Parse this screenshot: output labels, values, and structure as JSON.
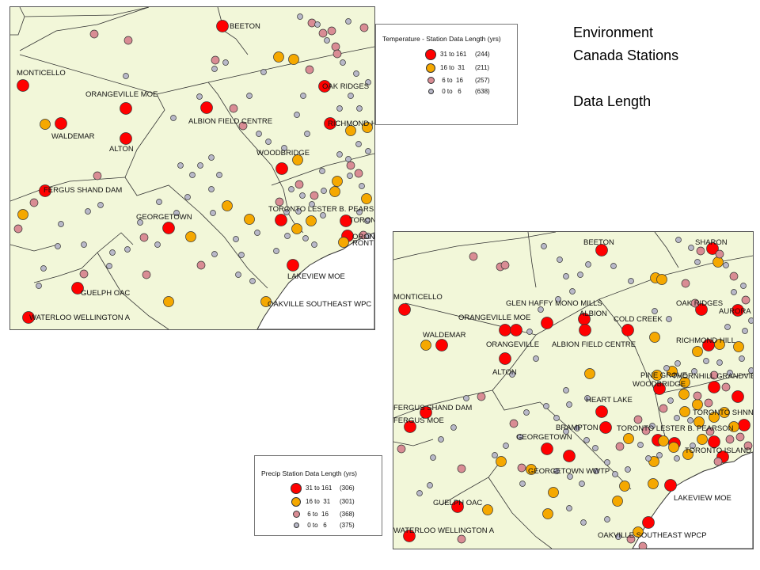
{
  "heading": {
    "line1": "Environment",
    "line2": "Canada Stations",
    "line3": "Data Length"
  },
  "colors": {
    "land": "#f2f7d9",
    "water": "#ffffff",
    "class_31_161": "#ff0000",
    "class_16_31": "#f5a800",
    "class_6_16": "#d98c94",
    "class_0_6": "#b8b8c8"
  },
  "legend_temperature": {
    "title": "Temperature - Station Data Length (yrs)",
    "rows": [
      {
        "range": "31 to 161",
        "count": "(244)"
      },
      {
        "range": "16 to  31",
        "count": "(211)"
      },
      {
        "range": " 6 to  16",
        "count": "(257)"
      },
      {
        "range": " 0 to   6",
        "count": "(638)"
      }
    ]
  },
  "legend_precip": {
    "title": "Precip Station Data Length (yrs)",
    "rows": [
      {
        "range": "31 to 161",
        "count": "(306)"
      },
      {
        "range": "16 to  31",
        "count": "(301)"
      },
      {
        "range": " 6 to  16",
        "count": "(368)"
      },
      {
        "range": " 0 to   6",
        "count": "(375)"
      }
    ]
  },
  "map_temperature": {
    "labels": [
      "BEETON",
      "MONTICELLO",
      "ORANGEVILLE MOE",
      "OAK RIDGES",
      "ALBION FIELD CENTRE",
      "RICHMOND HIL",
      "WALDEMAR",
      "ALTON",
      "WOODBRIDGE",
      "FERGUS SHAND DAM",
      "GEORGETOWN",
      "TORONTO LESTER B. PEARS",
      "TORON",
      "ORON",
      "RONT",
      "LAKEVIEW MOE",
      "GUELPH OAC",
      "OAKVILLE SOUTHEAST WPC",
      "WATERLOO WELLINGTON A"
    ]
  },
  "map_precip": {
    "labels": [
      "BEETON",
      "SHARON",
      "MONTICELLO",
      "GLEN HAFFY MONO MILLS",
      "OAK RIDGES",
      "AURORA",
      "ORANGEVILLE MOE",
      "ALBION",
      "COLD CREEK",
      "WALDEMAR",
      "ORANGEVILLE",
      "ALBION FIELD CENTRE",
      "RICHMOND HILL",
      "ALTON",
      "PINE GROVE",
      "THORNHILL GRANDVIE",
      "WOODBRIDGE",
      "HEART LAKE",
      "FERGUS SHAND DAM",
      "TORONTO SHNNYB",
      "FERGUS MOE",
      "BRAMPTON",
      "TORONTO LESTER B. PEARSON",
      "TORONTO ISLAND",
      "GEORGETOWN",
      "GEORGETOWN WWTP",
      "LAKEVIEW MOE",
      "GUELPH OAC",
      "OAKVILLE SOUTHEAST WPCP",
      "WATERLOO WELLINGTON A"
    ]
  }
}
